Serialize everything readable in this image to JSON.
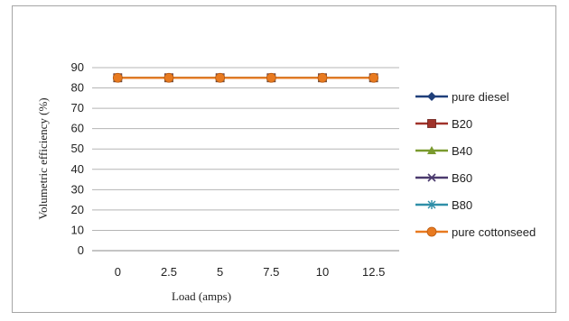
{
  "chart_data": {
    "type": "line",
    "title": "",
    "xlabel": "Load (amps)",
    "ylabel": "Volumetric efficiency (%)",
    "categories": [
      "0",
      "2.5",
      "5",
      "7.5",
      "10",
      "12.5"
    ],
    "ylim": [
      0,
      90
    ],
    "yticks": [
      0,
      10,
      20,
      30,
      40,
      50,
      60,
      70,
      80,
      90
    ],
    "grid": true,
    "legend_position": "right",
    "series": [
      {
        "name": "pure diesel",
        "values": [
          85,
          85,
          85,
          85,
          85,
          85
        ],
        "color": "#1f3f7a",
        "marker": "diamond"
      },
      {
        "name": "B20",
        "values": [
          85,
          85,
          85,
          85,
          85,
          85
        ],
        "color": "#a0322a",
        "marker": "square"
      },
      {
        "name": "B40",
        "values": [
          85,
          85,
          85,
          85,
          85,
          85
        ],
        "color": "#7a9a2e",
        "marker": "triangle"
      },
      {
        "name": "B60",
        "values": [
          85,
          85,
          85,
          85,
          85,
          85
        ],
        "color": "#4b3a6e",
        "marker": "x"
      },
      {
        "name": "B80",
        "values": [
          85,
          85,
          85,
          85,
          85,
          85
        ],
        "color": "#2f8fa8",
        "marker": "star"
      },
      {
        "name": "pure cottonseed",
        "values": [
          85,
          85,
          85,
          85,
          85,
          85
        ],
        "color": "#e87a20",
        "marker": "circle"
      }
    ]
  }
}
